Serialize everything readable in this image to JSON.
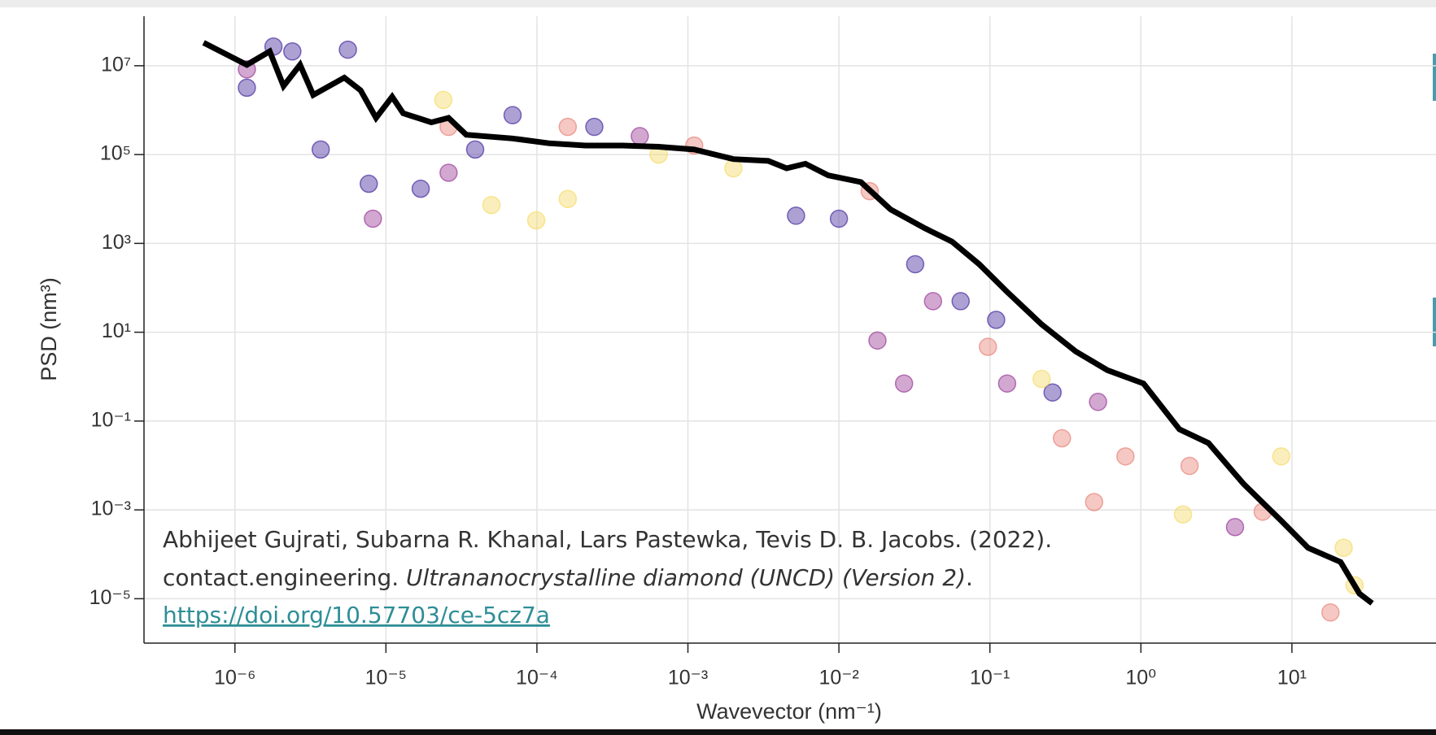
{
  "chart_data": {
    "type": "scatter",
    "x_label": "Wavevector (nm⁻¹)",
    "y_label": "PSD (nm³)",
    "log_x": true,
    "log_y": true,
    "grid": true,
    "xlim": [
      2.5e-07,
      90
    ],
    "ylim": [
      1e-06,
      130000000.0
    ],
    "xticks": [
      {
        "value": 1e-06,
        "label": "10⁻⁶"
      },
      {
        "value": 1e-05,
        "label": "10⁻⁵"
      },
      {
        "value": 0.0001,
        "label": "10⁻⁴"
      },
      {
        "value": 0.001,
        "label": "10⁻³"
      },
      {
        "value": 0.01,
        "label": "10⁻²"
      },
      {
        "value": 0.1,
        "label": "10⁻¹"
      },
      {
        "value": 1,
        "label": "10⁰"
      },
      {
        "value": 10,
        "label": "10¹"
      }
    ],
    "yticks": [
      {
        "value": 10000000.0,
        "label": "10⁷"
      },
      {
        "value": 100000.0,
        "label": "10⁵"
      },
      {
        "value": 1000.0,
        "label": "10³"
      },
      {
        "value": 10,
        "label": "10¹"
      },
      {
        "value": 0.1,
        "label": "10⁻¹"
      },
      {
        "value": 0.001,
        "label": "10⁻³"
      },
      {
        "value": 1e-05,
        "label": "10⁻⁵"
      }
    ],
    "series": [
      {
        "type": "scatter",
        "color": "#4a2ea0",
        "x": [
          1.2e-06,
          1.8e-06,
          2.4e-06,
          3.7e-06,
          5.6e-06,
          7.7e-06,
          1.7e-05,
          3.9e-05,
          6.9e-05,
          0.00024,
          0.0052,
          0.01,
          0.032,
          0.064,
          0.11,
          0.26
        ],
        "values": [
          3200000.0,
          27000000.0,
          21000000.0,
          130000.0,
          23000000.0,
          22000.0,
          17000.0,
          130000.0,
          770000.0,
          420000.0,
          4200.0,
          3600.0,
          340,
          50,
          19,
          0.44
        ]
      },
      {
        "type": "scatter",
        "color": "#9b3d9a",
        "x": [
          1.2e-06,
          8.2e-06,
          2.6e-05,
          0.00048,
          0.018,
          0.027,
          0.042,
          0.13,
          0.52,
          4.2
        ],
        "values": [
          8300000.0,
          3600.0,
          39000.0,
          260000.0,
          6.5,
          0.7,
          50,
          0.7,
          0.27,
          0.00041
        ]
      },
      {
        "type": "scatter",
        "color": "#e8857a",
        "x": [
          2.6e-05,
          0.00016,
          0.0011,
          0.016,
          0.097,
          0.3,
          0.79,
          0.49,
          2.1,
          6.4,
          18
        ],
        "values": [
          420000.0,
          420000.0,
          160000.0,
          15000.0,
          4.7,
          0.041,
          0.016,
          0.0015,
          0.0098,
          0.00091,
          4.9e-06
        ]
      },
      {
        "type": "scatter",
        "color": "#f5dc6a",
        "x": [
          2.4e-05,
          5e-05,
          9.9e-05,
          0.00016,
          0.00064,
          0.002,
          0.22,
          1.9,
          8.5,
          26,
          22
        ],
        "values": [
          1700000.0,
          7300.0,
          3300.0,
          10000.0,
          100000.0,
          49000.0,
          0.89,
          0.00079,
          0.016,
          2e-05,
          0.00014
        ]
      },
      {
        "type": "line",
        "color": "#000000",
        "x": [
          6.2e-07,
          1.2e-06,
          1.7e-06,
          2.1e-06,
          2.7e-06,
          3.3e-06,
          5.3e-06,
          6.8e-06,
          8.6e-06,
          1.1e-05,
          1.3e-05,
          2e-05,
          2.6e-05,
          3.4e-05,
          6.9e-05,
          0.00012,
          0.00021,
          0.00037,
          0.00064,
          0.0011,
          0.002,
          0.0034,
          0.0045,
          0.006,
          0.0085,
          0.014,
          0.022,
          0.037,
          0.056,
          0.085,
          0.13,
          0.22,
          0.37,
          0.6,
          1.04,
          1.8,
          2.8,
          4.8,
          8.5,
          12.8,
          21,
          28,
          34
        ],
        "values": [
          33000000.0,
          10500000.0,
          21000000.0,
          3500000.0,
          10500000.0,
          2200000.0,
          5400000.0,
          2800000.0,
          670000.0,
          2000000.0,
          850000.0,
          530000.0,
          670000.0,
          280000.0,
          230000.0,
          180000.0,
          160000.0,
          160000.0,
          150000.0,
          130000.0,
          79000.0,
          72000.0,
          49000.0,
          62000.0,
          34000.0,
          24000.0,
          5800.0,
          2200.0,
          1100.0,
          340,
          81,
          15,
          3.7,
          1.4,
          0.7,
          0.065,
          0.032,
          0.0038,
          0.00057,
          0.00014,
          6.7e-05,
          1.3e-05,
          7.9e-06
        ]
      }
    ],
    "annotations": [
      "Abhijeet Gujrati, Subarna R. Khanal, Lars Pastewka, Tevis D. B. Jacobs. (2022).",
      "contact.engineering. ",
      "Ultrananocrystalline diamond (UNCD) (Version 2)",
      ".",
      "https://doi.org/10.57703/ce-5cz7a"
    ]
  }
}
